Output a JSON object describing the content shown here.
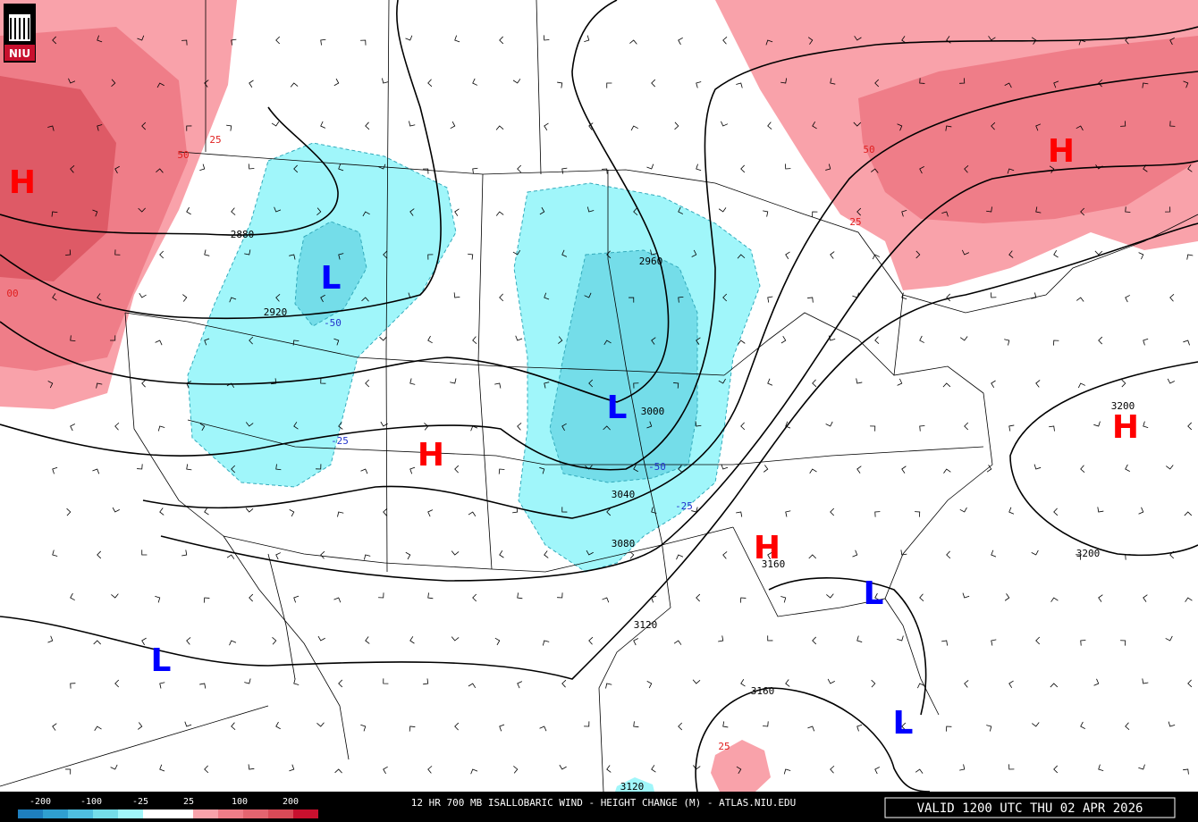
{
  "logo": "NIU",
  "centers": [
    {
      "label": "H",
      "kind": "high"
    },
    {
      "label": "L",
      "kind": "low"
    },
    {
      "label": "L",
      "kind": "low"
    },
    {
      "label": "H",
      "kind": "high"
    },
    {
      "label": "H",
      "kind": "high"
    },
    {
      "label": "H",
      "kind": "high"
    },
    {
      "label": "H",
      "kind": "high"
    },
    {
      "label": "L",
      "kind": "low"
    },
    {
      "label": "L",
      "kind": "low"
    },
    {
      "label": "L",
      "kind": "low"
    }
  ],
  "contour_labels": [
    "2880",
    "2920",
    "2960",
    "3000",
    "3040",
    "3080",
    "3120",
    "3160",
    "3160",
    "3200",
    "3200",
    "3120"
  ],
  "change_labels": [
    "25",
    "50",
    "00",
    "50",
    "25",
    "-50",
    "-25",
    "-50",
    "-25",
    "25"
  ],
  "legend": {
    "labels": [
      "-200",
      "-100",
      "-25",
      "25",
      "100",
      "200"
    ]
  },
  "footer": {
    "title": "12 HR 700 MB ISALLOBARIC WIND - HEIGHT CHANGE (M) - ATLAS.NIU.EDU",
    "valid": "VALID 1200 UTC THU 02 APR 2026"
  }
}
